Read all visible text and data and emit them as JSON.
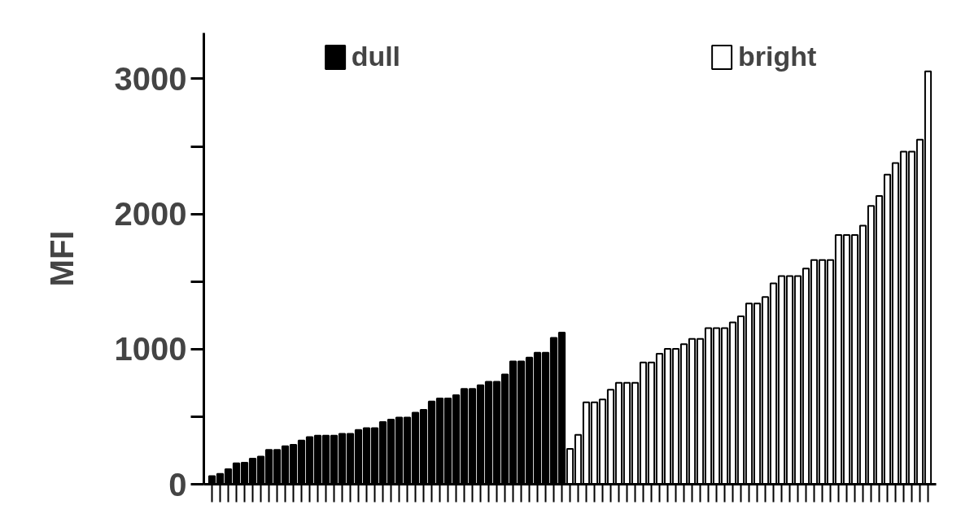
{
  "chart_data": {
    "type": "bar",
    "ylabel": "MFI",
    "categories": [
      null,
      null,
      null,
      null,
      null,
      null,
      null,
      null,
      null,
      null,
      null,
      null,
      null,
      null,
      null,
      null,
      null,
      null,
      null,
      null,
      null,
      null,
      null,
      null,
      null,
      null,
      null,
      null,
      null,
      null,
      null,
      null,
      null,
      null,
      null,
      null,
      null,
      null,
      null,
      null,
      null,
      null,
      null,
      null,
      null,
      null,
      null,
      null,
      null,
      null,
      null,
      null,
      null,
      null,
      null,
      null,
      null,
      null,
      null,
      null,
      null,
      null,
      null,
      null,
      null,
      null,
      null,
      null,
      null,
      null,
      null,
      null,
      null,
      null,
      null,
      null,
      null,
      null,
      null,
      null,
      null,
      null,
      null,
      null,
      null,
      null,
      null,
      null,
      null
    ],
    "series": [
      {
        "name": "dull",
        "color": "#000000",
        "values": [
          60,
          77,
          111,
          155,
          159,
          190,
          204,
          254,
          254,
          282,
          292,
          323,
          349,
          359,
          359,
          359,
          373,
          373,
          401,
          415,
          415,
          460,
          478,
          494,
          494,
          530,
          550,
          613,
          635,
          635,
          659,
          706,
          706,
          732,
          758,
          758,
          813,
          909,
          909,
          938,
          974,
          974,
          1083,
          1123,
          null,
          null,
          null,
          null,
          null,
          null,
          null,
          null,
          null,
          null,
          null,
          null,
          null,
          null,
          null,
          null,
          null,
          null,
          null,
          null,
          null,
          null,
          null,
          null,
          null,
          null,
          null,
          null,
          null,
          null,
          null,
          null,
          null,
          null,
          null,
          null,
          null,
          null,
          null,
          null,
          null,
          null,
          null,
          null,
          null
        ]
      },
      {
        "name": "bright",
        "color": "#ffffff",
        "values": [
          null,
          null,
          null,
          null,
          null,
          null,
          null,
          null,
          null,
          null,
          null,
          null,
          null,
          null,
          null,
          null,
          null,
          null,
          null,
          null,
          null,
          null,
          null,
          null,
          null,
          null,
          null,
          null,
          null,
          null,
          null,
          null,
          null,
          null,
          null,
          null,
          null,
          null,
          null,
          null,
          null,
          null,
          null,
          null,
          262,
          365,
          607,
          607,
          627,
          700,
          750,
          750,
          750,
          901,
          901,
          966,
          1002,
          1002,
          1036,
          1075,
          1075,
          1155,
          1155,
          1155,
          1198,
          1242,
          1337,
          1337,
          1385,
          1486,
          1540,
          1540,
          1540,
          1597,
          1659,
          1659,
          1659,
          1845,
          1845,
          1845,
          1913,
          2059,
          2133,
          2292,
          2377,
          2462,
          2462,
          2550,
          3056
        ]
      }
    ],
    "ylim": [
      0,
      3340
    ],
    "yticks": [
      0,
      {
        "value": 500,
        "label": null
      },
      1000,
      {
        "value": 1500,
        "label": null
      },
      2000,
      {
        "value": 2500,
        "label": null
      },
      3000
    ],
    "tick_labels": "y",
    "legend": "top"
  }
}
